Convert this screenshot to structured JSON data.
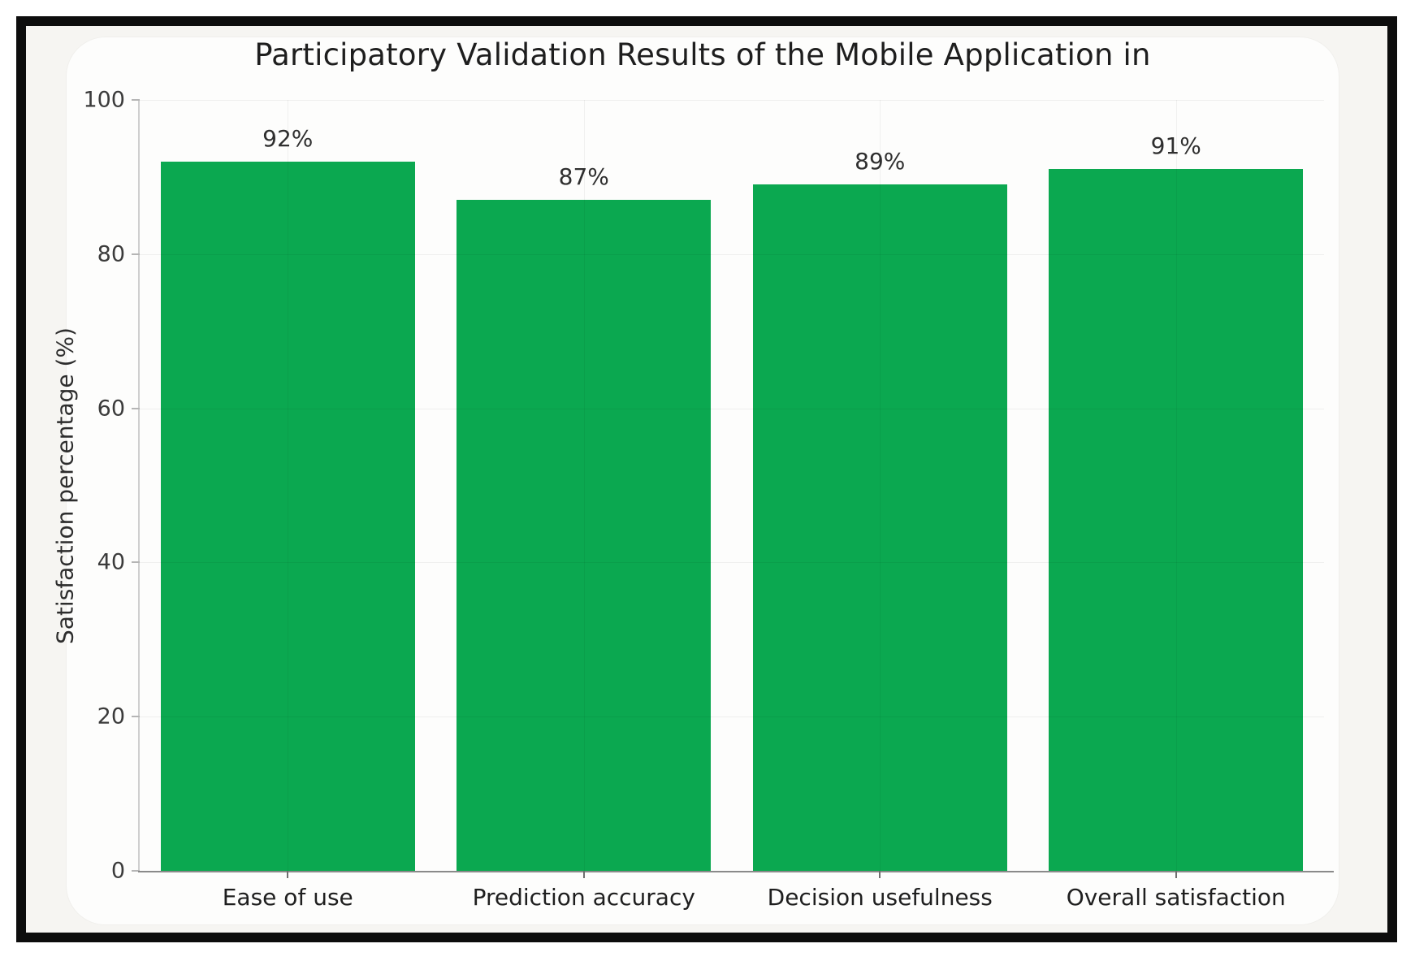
{
  "figure": {
    "frame_color": "#0d0d0d",
    "page_background": "#ffffff",
    "card_background": "#fdfdfc"
  },
  "chart_data": {
    "type": "bar",
    "title": "Participatory Validation Results of the Mobile Application in",
    "categories": [
      "Ease of use",
      "Prediction accuracy",
      "Decision usefulness",
      "Overall satisfaction"
    ],
    "values": [
      92,
      87,
      89,
      91
    ],
    "bar_labels": [
      "92%",
      "87%",
      "89%",
      "91%"
    ],
    "xlabel": "",
    "ylabel": "Satisfaction percentage (%)",
    "ylim": [
      0,
      100
    ],
    "yticks": [
      0,
      20,
      40,
      60,
      80,
      100
    ],
    "grid": true,
    "legend": false,
    "bar_color": "#0ba850",
    "bar_label_color": "#2f2f2f"
  }
}
